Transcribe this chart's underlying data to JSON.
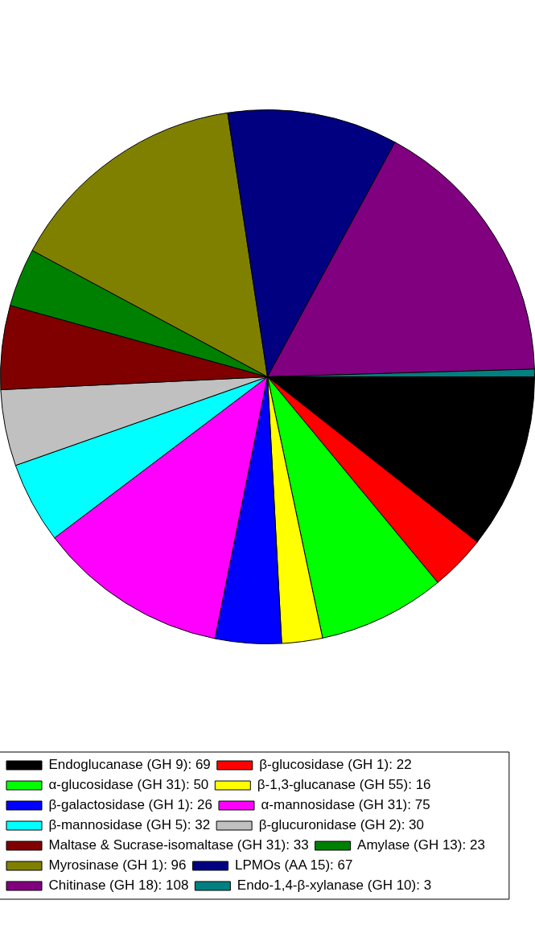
{
  "chart_data": {
    "type": "pie",
    "categories": [
      "Endoglucanase (GH 9): 69",
      "β-glucosidase (GH 1): 22",
      "α-glucosidase (GH 31): 50",
      "β-1,3-glucanase (GH 55): 16",
      "β-galactosidase (GH 1): 26",
      "α-mannosidase (GH 31): 75",
      "β-mannosidase (GH 5): 32",
      "β-glucuronidase (GH 2): 30",
      "Maltase & Sucrase-isomaltase (GH 31): 33",
      "Amylase (GH 13): 23",
      "Myrosinase (GH 1): 96",
      "LPMOs (AA 15): 67",
      "Chitinase (GH 18): 108",
      "Endo-1,4-β-xylanase (GH 10): 3"
    ],
    "values": [
      69,
      22,
      50,
      16,
      26,
      75,
      32,
      30,
      33,
      23,
      96,
      67,
      108,
      3
    ],
    "colors": [
      "#000000",
      "#ff0000",
      "#00ff00",
      "#ffff00",
      "#0000ff",
      "#ff00ff",
      "#00ffff",
      "#c0c0c0",
      "#800000",
      "#008000",
      "#808000",
      "#000080",
      "#800080",
      "#008080"
    ],
    "legend": "bottom"
  }
}
